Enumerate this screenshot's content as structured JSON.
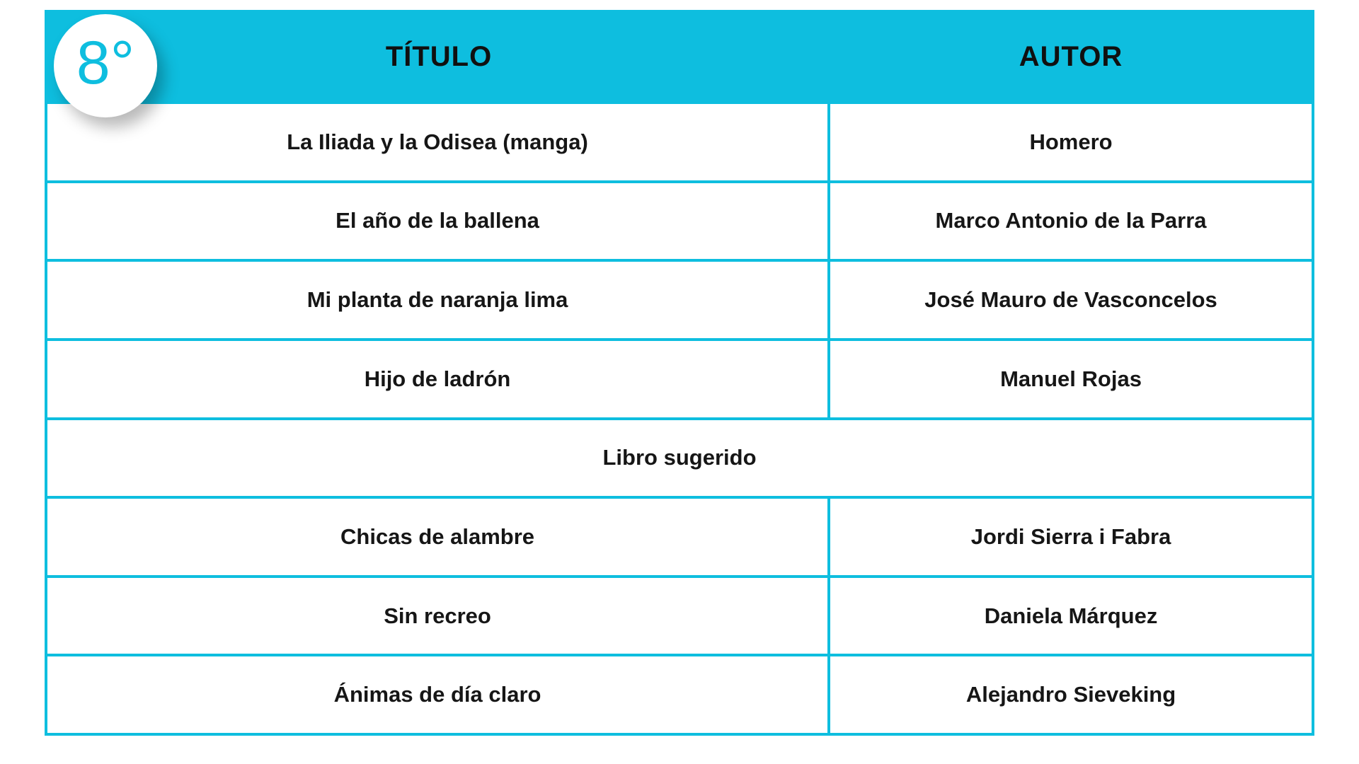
{
  "page": {
    "background_color": "#ffffff",
    "accent_color": "#0ebedf",
    "text_color": "#161616"
  },
  "badge": {
    "label": "8°"
  },
  "table": {
    "columns": [
      {
        "label": "TÍTULO"
      },
      {
        "label": "AUTOR"
      }
    ],
    "rows": [
      {
        "type": "book",
        "title": "La Iliada y la Odisea (manga)",
        "author": "Homero"
      },
      {
        "type": "book",
        "title": "El año de la ballena",
        "author": "Marco Antonio de la Parra"
      },
      {
        "type": "book",
        "title": "Mi planta de naranja lima",
        "author": "José Mauro de Vasconcelos"
      },
      {
        "type": "book",
        "title": "Hijo de ladrón",
        "author": "Manuel Rojas"
      },
      {
        "type": "section",
        "label": "Libro sugerido"
      },
      {
        "type": "book",
        "title": "Chicas de alambre",
        "author": "Jordi Sierra i Fabra"
      },
      {
        "type": "book",
        "title": "Sin recreo",
        "author": "Daniela Márquez"
      },
      {
        "type": "book",
        "title": "Ánimas de día claro",
        "author": "Alejandro Sieveking"
      }
    ]
  }
}
